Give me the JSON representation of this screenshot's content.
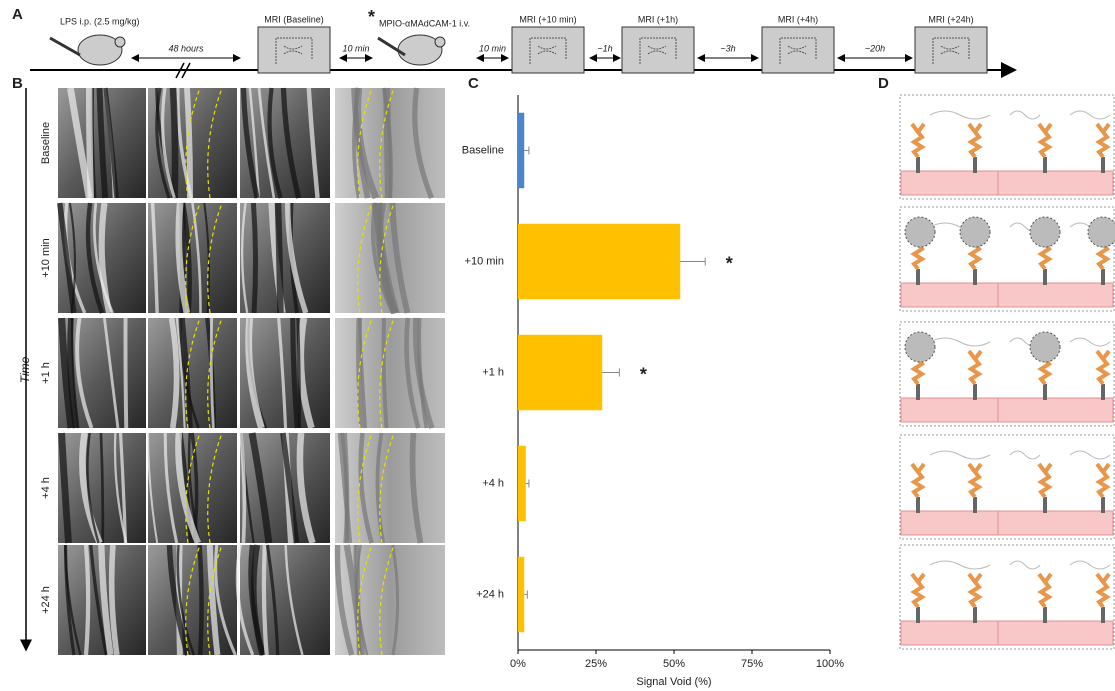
{
  "figure": {
    "panel_labels": [
      "A",
      "B",
      "C",
      "D"
    ],
    "timeline": {
      "injection_1": "LPS i.p. (2.5 mg/kg)",
      "injection_2_mark": "*",
      "injection_2": "MPIO-αMAdCAM-1 i.v.",
      "scans": [
        "MRI (Baseline)",
        "MRI (+10 min)",
        "MRI (+1h)",
        "MRI (+4h)",
        "MRI (+24h)"
      ],
      "intervals": [
        "48 hours",
        "10 min",
        "10 min",
        "~1h",
        "~3h",
        "~20h"
      ]
    },
    "time_axis_label": "Time"
  },
  "chart_data": {
    "type": "bar",
    "orientation": "horizontal",
    "categories": [
      "Baseline",
      "+10 min",
      "+1 h",
      "+4 h",
      "+24 h"
    ],
    "values": [
      2,
      52,
      27,
      2.5,
      2
    ],
    "errors": [
      1.5,
      8,
      5.5,
      1,
      1
    ],
    "colors": [
      "#4a86c8",
      "#ffc000",
      "#ffc000",
      "#ffc000",
      "#ffc000"
    ],
    "value_annotations": [
      null,
      "*",
      "*",
      null,
      null
    ],
    "xlabel": "Signal Void (%)",
    "xlim": [
      0,
      100
    ],
    "xticks": [
      {
        "value": 0,
        "label": "0%"
      },
      {
        "value": 25,
        "label": "25%"
      },
      {
        "value": 50,
        "label": "50%"
      },
      {
        "value": 75,
        "label": "75%"
      },
      {
        "value": 100,
        "label": "100%"
      }
    ]
  }
}
